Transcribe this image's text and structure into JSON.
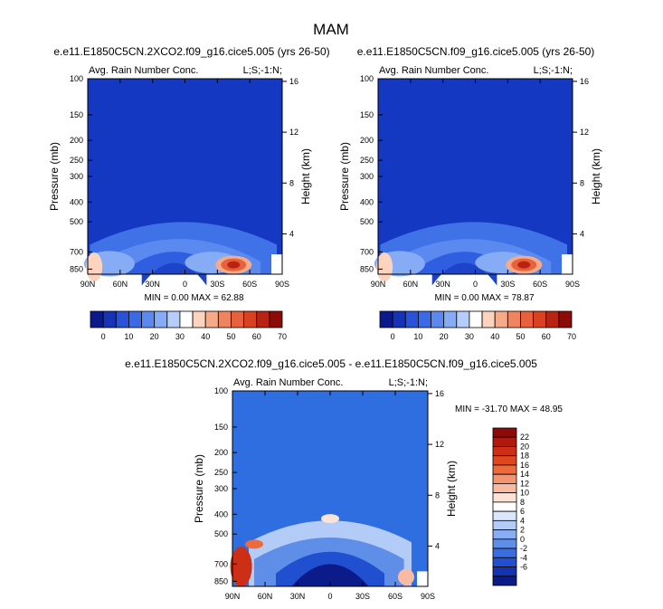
{
  "figure": {
    "title": "MAM"
  },
  "chart_data": [
    {
      "type": "heatmap",
      "title": "e.e11.E1850C5CN.2XCO2.f09_g16.cice5.005 (yrs 26-50)",
      "subtitle_left": "Avg. Rain Number Conc.",
      "subtitle_right": "L;S;-1:N;",
      "ylabel": "Pressure (mb)",
      "ylabel_right": "Height (km)",
      "x_ticks": [
        "90N",
        "60N",
        "30N",
        "0",
        "30S",
        "60S",
        "90S"
      ],
      "y_ticks": [
        "100",
        "150",
        "200",
        "250",
        "300",
        "400",
        "500",
        "700",
        "850"
      ],
      "y_ticks_right": [
        "16",
        "12",
        "8",
        "4"
      ],
      "min_max_text": "MIN =   0.00  MAX =  62.88",
      "colorbar_ticks": [
        "0",
        "10",
        "20",
        "30",
        "40",
        "50",
        "60",
        "70"
      ],
      "colorbar_orientation": "horizontal",
      "hotspot_lat": 45,
      "hotspot_p": 810,
      "hotspot_value": 62.88
    },
    {
      "type": "heatmap",
      "title": "e.e11.E1850C5CN.f09_g16.cice5.005 (yrs 26-50)",
      "subtitle_left": "Avg. Rain Number Conc.",
      "subtitle_right": "L;S;-1:N;",
      "ylabel": "Pressure (mb)",
      "ylabel_right": "Height (km)",
      "x_ticks": [
        "90N",
        "60N",
        "30N",
        "0",
        "30S",
        "60S",
        "90S"
      ],
      "y_ticks": [
        "100",
        "150",
        "200",
        "250",
        "300",
        "400",
        "500",
        "700",
        "850"
      ],
      "y_ticks_right": [
        "16",
        "12",
        "8",
        "4"
      ],
      "min_max_text": "MIN =   0.00  MAX =  78.87",
      "colorbar_ticks": [
        "0",
        "10",
        "20",
        "30",
        "40",
        "50",
        "60",
        "70"
      ],
      "colorbar_orientation": "horizontal",
      "hotspot_lat": 45,
      "hotspot_p": 810,
      "hotspot_value": 78.87
    },
    {
      "type": "heatmap",
      "title": "e.e11.E1850C5CN.2XCO2.f09_g16.cice5.005 - e.e11.E1850C5CN.f09_g16.cice5.005",
      "subtitle_left": "Avg. Rain Number Conc.",
      "subtitle_right": "L;S;-1:N;",
      "ylabel": "Pressure (mb)",
      "ylabel_right": "Height (km)",
      "x_ticks": [
        "90N",
        "60N",
        "30N",
        "0",
        "30S",
        "60S",
        "90S"
      ],
      "y_ticks": [
        "100",
        "150",
        "200",
        "250",
        "300",
        "400",
        "500",
        "700",
        "850"
      ],
      "y_ticks_right": [
        "16",
        "12",
        "8",
        "4"
      ],
      "min_max_text": "MIN = -31.70  MAX =  48.95",
      "colorbar_ticks": [
        "22",
        "20",
        "18",
        "16",
        "14",
        "12",
        "10",
        "8",
        "6",
        "4",
        "2",
        "0",
        "-2",
        "-4",
        "-6"
      ],
      "colorbar_orientation": "vertical"
    }
  ],
  "colors": {
    "abs_scale": [
      "#0a1a8c",
      "#1532b8",
      "#2a52d8",
      "#3a6ae6",
      "#5a8af0",
      "#86acf6",
      "#b6cdfa",
      "#ffffff",
      "#fbd3bf",
      "#f5ab8a",
      "#ef8560",
      "#e6613c",
      "#d84222",
      "#b82414",
      "#8c0a08"
    ],
    "diff_scale": [
      "#8c0a08",
      "#b01a0e",
      "#cc2e16",
      "#e0471f",
      "#ec6a3c",
      "#f39370",
      "#f8bba2",
      "#fde3d6",
      "#ffffff",
      "#d9e6fb",
      "#b3cbf7",
      "#88adf2",
      "#5e8ee8",
      "#3a6de0",
      "#2050d0",
      "#1533b0",
      "#0c1b8a"
    ],
    "background_blue": "#1538c2",
    "diff_background_blue": "#2f6ee0"
  }
}
